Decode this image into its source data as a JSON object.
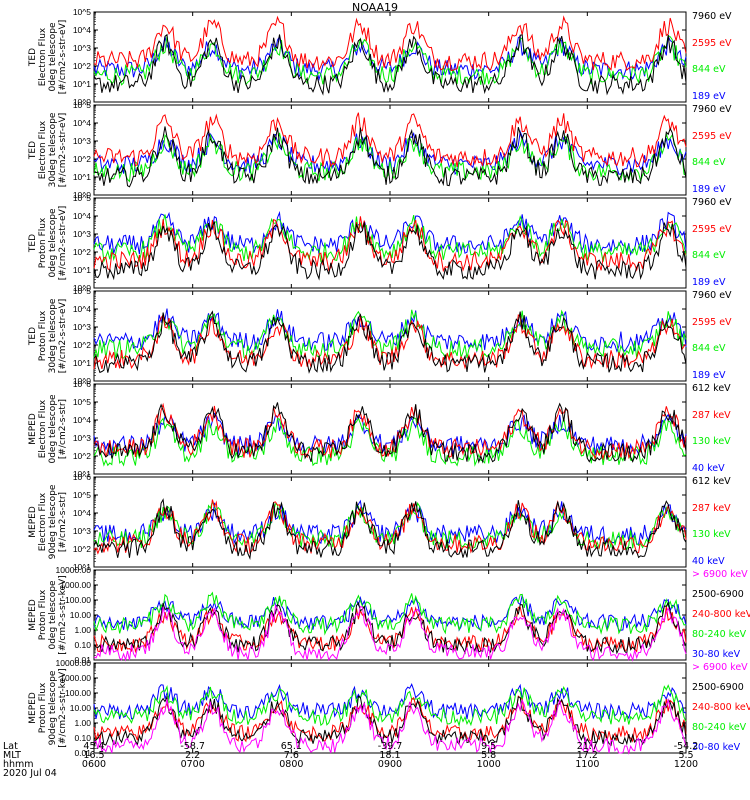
{
  "title": "NOAA19",
  "legend_colors": {
    "black": "#000000",
    "red": "#ff0000",
    "green": "#00ee00",
    "blue": "#0000ff",
    "magenta": "#ff00ff"
  },
  "bottom": {
    "row_labels": [
      "Lat",
      "MLT",
      "hhmm",
      "2020 Jul 04"
    ],
    "lat": [
      "45.4",
      "-58.7",
      "65.1",
      "-39.7",
      "9.5",
      "21.7",
      "-54.2"
    ],
    "mlt": [
      "16.5",
      "2.2",
      "7.6",
      "18.1",
      "5.8",
      "17.2",
      "5.5"
    ],
    "hhmm": [
      "0600",
      "0700",
      "0800",
      "0900",
      "1000",
      "1100",
      "1200"
    ]
  },
  "chart_data": [
    {
      "type": "line",
      "scale": "log",
      "ylabel": [
        "TED",
        "Electron Flux",
        "0deg telescope",
        "[#/cm2-s-str-eV]"
      ],
      "ylim": [
        1,
        100000
      ],
      "yticks": [
        "10^0",
        "10^1",
        "10^2",
        "10^3",
        "10^4",
        "10^5"
      ],
      "x": [
        "0600",
        "1200"
      ],
      "series": [
        {
          "name": "7960 eV",
          "color": "black",
          "level": 1.0
        },
        {
          "name": "2595 eV",
          "color": "red",
          "level": 2.3
        },
        {
          "name": "844 eV",
          "color": "green",
          "level": 1.5
        },
        {
          "name": "189 eV",
          "color": "blue",
          "level": 1.8
        }
      ]
    },
    {
      "type": "line",
      "scale": "log",
      "ylabel": [
        "TED",
        "Electron Flux",
        "30deg telescope",
        "[#/cm2-s-str-eV]"
      ],
      "ylim": [
        1,
        100000
      ],
      "yticks": [
        "10^0",
        "10^1",
        "10^2",
        "10^3",
        "10^4",
        "10^5"
      ],
      "x": [
        "0600",
        "1200"
      ],
      "series": [
        {
          "name": "7960 eV",
          "color": "black",
          "level": 1.0
        },
        {
          "name": "2595 eV",
          "color": "red",
          "level": 2.1
        },
        {
          "name": "844 eV",
          "color": "green",
          "level": 1.3
        },
        {
          "name": "189 eV",
          "color": "blue",
          "level": 1.7
        }
      ]
    },
    {
      "type": "line",
      "scale": "log",
      "ylabel": [
        "TED",
        "Proton Flux",
        "0deg telescope",
        "[#/cm2-s-str-eV]"
      ],
      "ylim": [
        1,
        100000
      ],
      "yticks": [
        "10^0",
        "10^1",
        "10^2",
        "10^3",
        "10^4",
        "10^5"
      ],
      "x": [
        "0600",
        "1200"
      ],
      "series": [
        {
          "name": "7960 eV",
          "color": "black",
          "level": 1.0
        },
        {
          "name": "2595 eV",
          "color": "red",
          "level": 1.5
        },
        {
          "name": "844 eV",
          "color": "green",
          "level": 2.0
        },
        {
          "name": "189 eV",
          "color": "blue",
          "level": 2.4
        }
      ]
    },
    {
      "type": "line",
      "scale": "log",
      "ylabel": [
        "TED",
        "Proton Flux",
        "30deg telescope",
        "[#/cm2-s-str-eV]"
      ],
      "ylim": [
        1,
        100000
      ],
      "yticks": [
        "10^0",
        "10^1",
        "10^2",
        "10^3",
        "10^4",
        "10^5"
      ],
      "x": [
        "0600",
        "1200"
      ],
      "series": [
        {
          "name": "7960 eV",
          "color": "black",
          "level": 1.0
        },
        {
          "name": "2595 eV",
          "color": "red",
          "level": 1.2
        },
        {
          "name": "844 eV",
          "color": "green",
          "level": 1.8
        },
        {
          "name": "189 eV",
          "color": "blue",
          "level": 2.2
        }
      ]
    },
    {
      "type": "line",
      "scale": "log",
      "ylabel": [
        "MEPED",
        "Electron Flux",
        "0deg telescope",
        "[#/cm2-s-str]"
      ],
      "ylim": [
        10,
        1000000
      ],
      "yticks": [
        "10^1",
        "10^2",
        "10^3",
        "10^4",
        "10^5",
        "10^6"
      ],
      "x": [
        "0600",
        "1200"
      ],
      "series": [
        {
          "name": "612 keV",
          "color": "black",
          "level": 2.2
        },
        {
          "name": "287 keV",
          "color": "red",
          "level": 2.4
        },
        {
          "name": "130 keV",
          "color": "green",
          "level": 2.0
        },
        {
          "name": "40 keV",
          "color": "blue",
          "level": 2.6
        }
      ]
    },
    {
      "type": "line",
      "scale": "log",
      "ylabel": [
        "MEPED",
        "Electron Flux",
        "90deg telescope",
        "[#/cm2-s-str]"
      ],
      "ylim": [
        10,
        1000000
      ],
      "yticks": [
        "10^1",
        "10^2",
        "10^3",
        "10^4",
        "10^5",
        "10^6"
      ],
      "x": [
        "0600",
        "1200"
      ],
      "series": [
        {
          "name": "612 keV",
          "color": "black",
          "level": 2.0
        },
        {
          "name": "287 keV",
          "color": "red",
          "level": 2.3
        },
        {
          "name": "130 keV",
          "color": "green",
          "level": 2.5
        },
        {
          "name": "40 keV",
          "color": "blue",
          "level": 2.8
        }
      ]
    },
    {
      "type": "line",
      "scale": "log",
      "ylabel": [
        "MEPED",
        "Proton Flux",
        "0deg telescope",
        "[#/cm2-s-str-keV]"
      ],
      "ylim": [
        0.01,
        10000
      ],
      "yticks": [
        "0.01",
        "0.10",
        "1.00",
        "10.00",
        "100.00",
        "1000.00",
        "10000.00"
      ],
      "x": [
        "0600",
        "1200"
      ],
      "series": [
        {
          "name": "> 6900 keV",
          "color": "magenta",
          "level": -1.5
        },
        {
          "name": "2500-6900",
          "color": "black",
          "level": -1.0
        },
        {
          "name": "240-800 keV",
          "color": "red",
          "level": -0.9
        },
        {
          "name": "80-240 keV",
          "color": "green",
          "level": 0.3
        },
        {
          "name": "30-80 keV",
          "color": "blue",
          "level": 0.5
        }
      ]
    },
    {
      "type": "line",
      "scale": "log",
      "ylabel": [
        "MEPED",
        "Proton Flux",
        "90deg telescope",
        "[#/cm2-s-str-keV]"
      ],
      "ylim": [
        0.01,
        10000
      ],
      "yticks": [
        "0.01",
        "0.10",
        "1.00",
        "10.00",
        "100.00",
        "1000.00",
        "10000.00"
      ],
      "x": [
        "0600",
        "1200"
      ],
      "series": [
        {
          "name": "> 6900 keV",
          "color": "magenta",
          "level": -1.5
        },
        {
          "name": "2500-6900",
          "color": "black",
          "level": -1.0
        },
        {
          "name": "240-800 keV",
          "color": "red",
          "level": -0.7
        },
        {
          "name": "80-240 keV",
          "color": "green",
          "level": 0.4
        },
        {
          "name": "30-80 keV",
          "color": "blue",
          "level": 0.8
        }
      ]
    }
  ]
}
